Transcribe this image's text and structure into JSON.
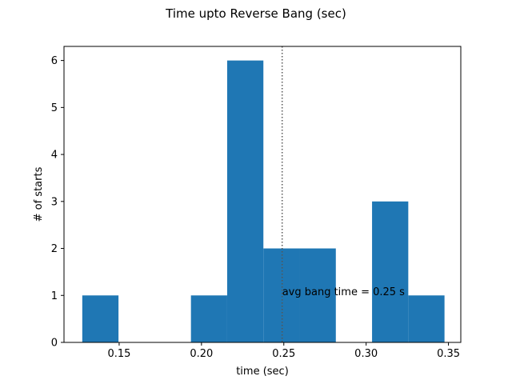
{
  "chart_data": {
    "type": "bar",
    "title": "Time upto Reverse Bang (sec)",
    "xlabel": "time (sec)",
    "ylabel": "# of starts",
    "xlim": [
      0.1165,
      0.3575
    ],
    "ylim": [
      0,
      6.3
    ],
    "xticks": [
      0.15,
      0.2,
      0.25,
      0.3,
      0.35
    ],
    "xtick_labels": [
      "0.15",
      "0.20",
      "0.25",
      "0.30",
      "0.35"
    ],
    "yticks": [
      0,
      1,
      2,
      3,
      4,
      5,
      6
    ],
    "ytick_labels": [
      "0",
      "1",
      "2",
      "3",
      "4",
      "5",
      "6"
    ],
    "bin_edges": [
      0.1276,
      0.1496,
      0.1716,
      0.1936,
      0.2156,
      0.2376,
      0.2596,
      0.2816,
      0.3036,
      0.3256,
      0.3476
    ],
    "values": [
      1,
      0,
      0,
      1,
      6,
      2,
      2,
      0,
      3,
      1
    ],
    "bar_color": "#1f77b4",
    "mean_line": {
      "x": 0.249,
      "color": "#555555",
      "style": "dotted"
    },
    "annotation": {
      "text": "avg bang time = 0.25 s",
      "x": 0.249,
      "y": 1
    },
    "grid": false,
    "legend": "none"
  }
}
